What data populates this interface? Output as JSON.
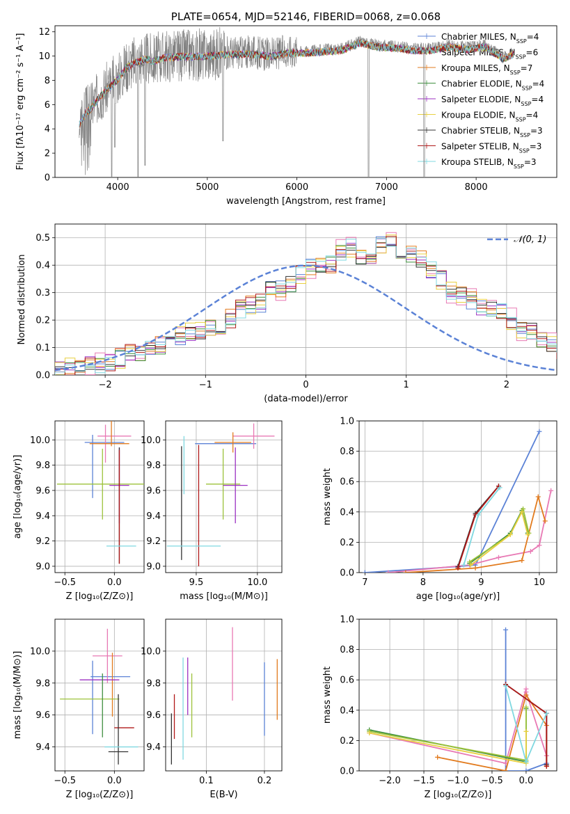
{
  "colors": {
    "Chabrier MILES": "#5b82d6",
    "Salpeter MILES": "#e879b4",
    "Kroupa MILES": "#e27b1e",
    "Chabrier ELODIE": "#3f8f3f",
    "Salpeter ELODIE": "#9b30c2",
    "Kroupa ELODIE": "#e8d040",
    "Chabrier STELIB": "#333333",
    "Salpeter STELIB": "#b01818",
    "Kroupa STELIB": "#7fd8e0",
    "extra_olive": "#9cc23a",
    "normal": "#5b82d6",
    "spectrum": "#808080"
  },
  "chart_data": [
    {
      "type": "line",
      "title": "PLATE=0654, MJD=52146, FIBERID=0068, z=0.068",
      "xlabel": "wavelength [Angstrom, rest frame]",
      "ylabel": "Flux [fλ10⁻¹⁷ erg cm⁻² s⁻¹ A⁻¹]",
      "xlim": [
        3300,
        8900
      ],
      "ylim": [
        0,
        12.5
      ],
      "xticks": [
        4000,
        5000,
        6000,
        7000,
        8000
      ],
      "yticks": [
        0,
        2,
        4,
        6,
        8,
        10,
        12
      ],
      "data_range": [
        3570,
        8420
      ],
      "continuum": {
        "x": [
          3570,
          3650,
          3700,
          3800,
          3900,
          4000,
          4100,
          4200,
          4300,
          4400,
          4500,
          4700,
          4900,
          5100,
          5300,
          5500,
          5700,
          5900,
          6100,
          6300,
          6500,
          6700,
          6900,
          7100,
          7300,
          7500,
          7700,
          7900,
          8100,
          8300,
          8420
        ],
        "y": [
          4.5,
          5.5,
          5.8,
          6.8,
          7.5,
          8.2,
          9.2,
          9.6,
          9.9,
          9.7,
          10.0,
          10.1,
          10.1,
          10.2,
          10.3,
          10.3,
          10.1,
          10.4,
          10.4,
          10.5,
          10.6,
          11.2,
          10.9,
          10.8,
          10.6,
          10.6,
          10.9,
          10.7,
          10.9,
          9.9,
          10.3
        ]
      },
      "absorption_dips": [
        {
          "x": 3933,
          "y": 0.0
        },
        {
          "x": 3968,
          "y": 2.5
        },
        {
          "x": 4227,
          "y": 0.0
        },
        {
          "x": 4305,
          "y": 1.0
        },
        {
          "x": 5175,
          "y": 3.0
        },
        {
          "x": 6800,
          "y": 0.0
        },
        {
          "x": 7420,
          "y": 0.0
        }
      ],
      "legend_placement": "right",
      "legend": [
        {
          "model": "Chabrier MILES",
          "label": "Chabrier MILES, N",
          "sub": "SSP",
          "n": "=4"
        },
        {
          "model": "Salpeter MILES",
          "label": "Salpeter MILES, N",
          "sub": "SSP",
          "n": "=6"
        },
        {
          "model": "Kroupa MILES",
          "label": "Kroupa MILES, N",
          "sub": "SSP",
          "n": "=7"
        },
        {
          "model": "Chabrier ELODIE",
          "label": "Chabrier ELODIE, N",
          "sub": "SSP",
          "n": "=4"
        },
        {
          "model": "Salpeter ELODIE",
          "label": "Salpeter ELODIE, N",
          "sub": "SSP",
          "n": "=4"
        },
        {
          "model": "Kroupa ELODIE",
          "label": "Kroupa ELODIE, N",
          "sub": "SSP",
          "n": "=4"
        },
        {
          "model": "Chabrier STELIB",
          "label": "Chabrier STELIB, N",
          "sub": "SSP",
          "n": "=3"
        },
        {
          "model": "Salpeter STELIB",
          "label": "Salpeter STELIB, N",
          "sub": "SSP",
          "n": "=3"
        },
        {
          "model": "Kroupa STELIB",
          "label": "Kroupa STELIB, N",
          "sub": "SSP",
          "n": "=3"
        }
      ]
    },
    {
      "type": "step",
      "xlabel": "(data-model)/error",
      "ylabel": "Normed distribution",
      "xlim": [
        -2.5,
        2.5
      ],
      "ylim": [
        0,
        0.55
      ],
      "xticks": [
        -2,
        -1,
        0,
        1,
        2
      ],
      "yticks": [
        0.0,
        0.1,
        0.2,
        0.3,
        0.4,
        0.5
      ],
      "grid": true,
      "legend": "𝒩(0, 1)",
      "legend_placement": "top-right",
      "bin_start": -2.5,
      "bin_width": 0.1,
      "envelope": [
        0.02,
        0.025,
        0.03,
        0.04,
        0.04,
        0.05,
        0.06,
        0.08,
        0.08,
        0.09,
        0.1,
        0.12,
        0.14,
        0.15,
        0.16,
        0.17,
        0.18,
        0.2,
        0.24,
        0.25,
        0.26,
        0.31,
        0.31,
        0.33,
        0.37,
        0.39,
        0.4,
        0.41,
        0.45,
        0.46,
        0.42,
        0.43,
        0.47,
        0.48,
        0.45,
        0.44,
        0.42,
        0.38,
        0.35,
        0.3,
        0.29,
        0.27,
        0.24,
        0.24,
        0.23,
        0.2,
        0.17,
        0.16,
        0.13,
        0.11,
        0.09,
        0.08,
        0.07,
        0.06,
        0.05,
        0.04,
        0.035,
        0.03,
        0.025,
        0.02
      ],
      "series": [
        {
          "model": "Chabrier MILES",
          "seed": 1,
          "amp": 0.035
        },
        {
          "model": "Salpeter MILES",
          "seed": 2,
          "amp": 0.045
        },
        {
          "model": "Kroupa MILES",
          "seed": 3,
          "amp": 0.04
        },
        {
          "model": "Chabrier ELODIE",
          "seed": 4,
          "amp": 0.03
        },
        {
          "model": "Salpeter ELODIE",
          "seed": 5,
          "amp": 0.03
        },
        {
          "model": "Kroupa ELODIE",
          "seed": 6,
          "amp": 0.04
        },
        {
          "model": "Chabrier STELIB",
          "seed": 7,
          "amp": 0.03
        },
        {
          "model": "Salpeter STELIB",
          "seed": 8,
          "amp": 0.035
        },
        {
          "model": "Kroupa STELIB",
          "seed": 9,
          "amp": 0.035
        }
      ]
    },
    {
      "type": "errorbar",
      "xlabel": "Z [log₁₀(Z/Z⊙)]",
      "ylabel": "age  [log₁₀(age/yr)]",
      "xlim": [
        -0.6,
        0.3
      ],
      "ylim": [
        8.95,
        10.15
      ],
      "xticks": [
        -0.5,
        0.0
      ],
      "yticks": [
        9.0,
        9.2,
        9.4,
        9.6,
        9.8,
        10.0
      ],
      "points": [
        {
          "model": "Chabrier MILES",
          "x": -0.22,
          "y": 9.79,
          "xerr": 0.0,
          "yerr": 0.25
        },
        {
          "model": "Chabrier MILES",
          "x": -0.1,
          "y": 9.98,
          "xerr": 0.2,
          "yerr": 0.0
        },
        {
          "model": "Salpeter MILES",
          "x": -0.09,
          "y": 9.97,
          "xerr": 0.0,
          "yerr": 0.15
        },
        {
          "model": "Salpeter MILES",
          "x": 0.0,
          "y": 10.03,
          "xerr": 0.17,
          "yerr": 0.0
        },
        {
          "model": "Kroupa MILES",
          "x": -0.03,
          "y": 10.05,
          "xerr": 0.0,
          "yerr": 0.1
        },
        {
          "model": "Kroupa MILES",
          "x": -0.05,
          "y": 9.97,
          "xerr": 0.2,
          "yerr": 0.0
        },
        {
          "model": "extra_olive",
          "x": -0.12,
          "y": 9.65,
          "xerr": 0.46,
          "yerr": 0.28
        },
        {
          "model": "Salpeter ELODIE",
          "x": 0.05,
          "y": 9.64,
          "xerr": 0.1,
          "yerr": 0.3
        },
        {
          "model": "Chabrier STELIB",
          "x": 0.05,
          "y": 9.48,
          "xerr": 0.0,
          "yerr": 0.46
        },
        {
          "model": "Salpeter STELIB",
          "x": 0.05,
          "y": 9.47,
          "xerr": 0.0,
          "yerr": 0.45
        },
        {
          "model": "Kroupa STELIB",
          "x": 0.07,
          "y": 9.16,
          "xerr": 0.15,
          "yerr": 0.0
        }
      ]
    },
    {
      "type": "errorbar",
      "xlabel": "mass [log₁₀(M/M⊙)]",
      "xlim": [
        9.25,
        10.2
      ],
      "ylim": [
        8.95,
        10.15
      ],
      "xticks": [
        9.5,
        10.0
      ],
      "yticks": [
        9.0,
        9.2,
        9.4,
        9.6,
        9.8,
        10.0
      ],
      "points": [
        {
          "model": "Chabrier MILES",
          "x": 9.74,
          "y": 9.97,
          "xerr": 0.25,
          "yerr": 0.0
        },
        {
          "model": "Salpeter MILES",
          "x": 9.97,
          "y": 10.03,
          "xerr": 0.17,
          "yerr": 0.1
        },
        {
          "model": "Kroupa MILES",
          "x": 9.8,
          "y": 9.98,
          "xerr": 0.15,
          "yerr": 0.08
        },
        {
          "model": "extra_olive",
          "x": 9.72,
          "y": 9.65,
          "xerr": 0.14,
          "yerr": 0.28
        },
        {
          "model": "Salpeter ELODIE",
          "x": 9.82,
          "y": 9.64,
          "xerr": 0.1,
          "yerr": 0.3
        },
        {
          "model": "Chabrier STELIB",
          "x": 9.38,
          "y": 9.5,
          "xerr": 0.0,
          "yerr": 0.45
        },
        {
          "model": "Salpeter STELIB",
          "x": 9.52,
          "y": 9.48,
          "xerr": 0.0,
          "yerr": 0.48
        },
        {
          "model": "Kroupa STELIB",
          "x": 9.48,
          "y": 9.16,
          "xerr": 0.22,
          "yerr": 0.0
        },
        {
          "model": "Kroupa STELIB",
          "x": 9.4,
          "y": 9.8,
          "xerr": 0.0,
          "yerr": 0.23
        }
      ]
    },
    {
      "type": "line",
      "xlabel": "age  [log₁₀(age/yr)]",
      "ylabel": "mass weight",
      "xlim": [
        6.9,
        10.3
      ],
      "ylim": [
        0,
        1.0
      ],
      "xticks": [
        7,
        8,
        9,
        10
      ],
      "yticks": [
        0.0,
        0.2,
        0.4,
        0.6,
        0.8,
        1.0
      ],
      "grid": true,
      "series": [
        {
          "model": "Chabrier MILES",
          "x": [
            7.0,
            8.6,
            8.9,
            10.0
          ],
          "y": [
            0.0,
            0.04,
            0.05,
            0.93
          ]
        },
        {
          "model": "Salpeter MILES",
          "x": [
            7.4,
            8.8,
            9.3,
            9.85,
            10.0,
            10.2
          ],
          "y": [
            0.0,
            0.05,
            0.1,
            0.14,
            0.18,
            0.54
          ]
        },
        {
          "model": "Kroupa MILES",
          "x": [
            7.7,
            8.9,
            9.7,
            9.98,
            10.1
          ],
          "y": [
            0.0,
            0.03,
            0.08,
            0.5,
            0.34
          ]
        },
        {
          "model": "Chabrier ELODIE",
          "x": [
            8.8,
            9.5,
            9.7,
            9.8
          ],
          "y": [
            0.06,
            0.26,
            0.41,
            0.26
          ]
        },
        {
          "model": "extra_olive",
          "x": [
            8.8,
            9.5,
            9.72,
            9.82
          ],
          "y": [
            0.07,
            0.25,
            0.42,
            0.26
          ]
        },
        {
          "model": "Kroupa ELODIE",
          "x": [
            8.82,
            9.5,
            9.7,
            9.8
          ],
          "y": [
            0.05,
            0.25,
            0.4,
            0.25
          ]
        },
        {
          "model": "Chabrier STELIB",
          "x": [
            8.6,
            8.9,
            9.3
          ],
          "y": [
            0.04,
            0.39,
            0.57
          ]
        },
        {
          "model": "Salpeter STELIB",
          "x": [
            8.6,
            8.9,
            9.3
          ],
          "y": [
            0.03,
            0.38,
            0.57
          ]
        },
        {
          "model": "Kroupa STELIB",
          "x": [
            8.7,
            8.95,
            9.32
          ],
          "y": [
            0.05,
            0.38,
            0.56
          ]
        }
      ]
    },
    {
      "type": "errorbar",
      "xlabel": "Z [log₁₀(Z/Z⊙)]",
      "ylabel": "mass [log₁₀(M/M⊙)]",
      "xlim": [
        -0.6,
        0.3
      ],
      "ylim": [
        9.25,
        10.2
      ],
      "xticks": [
        -0.5,
        0.0
      ],
      "yticks": [
        9.4,
        9.6,
        9.8,
        10.0
      ],
      "points": [
        {
          "model": "Chabrier MILES",
          "x": -0.22,
          "y": 9.71,
          "xerr": 0.0,
          "yerr": 0.23
        },
        {
          "model": "Chabrier MILES",
          "x": -0.04,
          "y": 9.84,
          "xerr": 0.2,
          "yerr": 0.0
        },
        {
          "model": "Salpeter MILES",
          "x": -0.07,
          "y": 9.97,
          "xerr": 0.15,
          "yerr": 0.17
        },
        {
          "model": "Kroupa MILES",
          "x": -0.02,
          "y": 9.79,
          "xerr": 0.0,
          "yerr": 0.2
        },
        {
          "model": "Salpeter ELODIE",
          "x": -0.15,
          "y": 9.82,
          "xerr": 0.2,
          "yerr": 0.0
        },
        {
          "model": "extra_olive",
          "x": -0.25,
          "y": 9.7,
          "xerr": 0.3,
          "yerr": 0.0
        },
        {
          "model": "Chabrier ELODIE",
          "x": -0.12,
          "y": 9.66,
          "xerr": 0.0,
          "yerr": 0.2
        },
        {
          "model": "Salpeter STELIB",
          "x": 0.1,
          "y": 9.52,
          "xerr": 0.1,
          "yerr": 0.0
        },
        {
          "model": "Chabrier STELIB",
          "x": 0.04,
          "y": 9.51,
          "xerr": 0.0,
          "yerr": 0.22
        },
        {
          "model": "Chabrier STELIB",
          "x": 0.04,
          "y": 9.37,
          "xerr": 0.1,
          "yerr": 0.0
        },
        {
          "model": "Kroupa STELIB",
          "x": 0.07,
          "y": 9.4,
          "xerr": 0.17,
          "yerr": 0.0
        }
      ]
    },
    {
      "type": "errorbar",
      "xlabel": "E(B-V)",
      "xlim": [
        0.03,
        0.23
      ],
      "ylim": [
        9.25,
        10.2
      ],
      "xticks": [
        0.1,
        0.2
      ],
      "yticks": [
        9.4,
        9.6,
        9.8,
        10.0
      ],
      "points": [
        {
          "model": "Chabrier STELIB",
          "x": 0.04,
          "y": 9.45,
          "xerr": 0.0,
          "yerr": 0.16
        },
        {
          "model": "Salpeter STELIB",
          "x": 0.045,
          "y": 9.59,
          "xerr": 0.0,
          "yerr": 0.14
        },
        {
          "model": "Kroupa STELIB",
          "x": 0.06,
          "y": 9.64,
          "xerr": 0.0,
          "yerr": 0.32
        },
        {
          "model": "Salpeter ELODIE",
          "x": 0.068,
          "y": 9.78,
          "xerr": 0.0,
          "yerr": 0.18
        },
        {
          "model": "extra_olive",
          "x": 0.075,
          "y": 9.66,
          "xerr": 0.0,
          "yerr": 0.2
        },
        {
          "model": "Salpeter MILES",
          "x": 0.145,
          "y": 9.92,
          "xerr": 0.0,
          "yerr": 0.23
        },
        {
          "model": "Chabrier MILES",
          "x": 0.2,
          "y": 9.7,
          "xerr": 0.0,
          "yerr": 0.23
        },
        {
          "model": "Kroupa MILES",
          "x": 0.222,
          "y": 9.76,
          "xerr": 0.0,
          "yerr": 0.19
        }
      ]
    },
    {
      "type": "line",
      "xlabel": "Z [log₁₀(Z/Z⊙)]",
      "ylabel": "mass weight",
      "xlim": [
        -2.45,
        0.45
      ],
      "ylim": [
        0,
        1.0
      ],
      "xticks": [
        -2.0,
        -1.5,
        -1.0,
        -0.5,
        0.0
      ],
      "yticks": [
        0.0,
        0.2,
        0.4,
        0.6,
        0.8,
        1.0
      ],
      "grid": true,
      "series": [
        {
          "model": "Chabrier MILES",
          "x": [
            -0.3,
            -0.3,
            0.0,
            0.3
          ],
          "y": [
            0.93,
            0.0,
            0.0,
            0.05
          ]
        },
        {
          "model": "Salpeter MILES",
          "x": [
            -2.3,
            -0.3,
            0.0,
            0.0,
            0.3,
            0.3
          ],
          "y": [
            0.25,
            0.05,
            0.54,
            0.52,
            0.1,
            0.04
          ]
        },
        {
          "model": "Kroupa MILES",
          "x": [
            -1.3,
            -0.3,
            0.0,
            0.3,
            0.3
          ],
          "y": [
            0.09,
            0.0,
            0.5,
            0.3,
            0.03
          ]
        },
        {
          "model": "Chabrier ELODIE",
          "x": [
            -2.3,
            0.0,
            0.0
          ],
          "y": [
            0.27,
            0.06,
            0.41
          ]
        },
        {
          "model": "extra_olive",
          "x": [
            -2.3,
            0.0,
            0.0
          ],
          "y": [
            0.26,
            0.07,
            0.42
          ]
        },
        {
          "model": "Kroupa ELODIE",
          "x": [
            -2.3,
            0.0,
            0.0
          ],
          "y": [
            0.25,
            0.05,
            0.26
          ]
        },
        {
          "model": "Chabrier STELIB",
          "x": [
            -0.3,
            0.3,
            0.3
          ],
          "y": [
            0.57,
            0.38,
            0.04
          ]
        },
        {
          "model": "Salpeter STELIB",
          "x": [
            -0.3,
            0.3,
            0.3
          ],
          "y": [
            0.57,
            0.38,
            0.03
          ]
        },
        {
          "model": "Kroupa STELIB",
          "x": [
            -0.3,
            0.0,
            0.3
          ],
          "y": [
            0.56,
            0.06,
            0.38
          ]
        }
      ]
    }
  ]
}
